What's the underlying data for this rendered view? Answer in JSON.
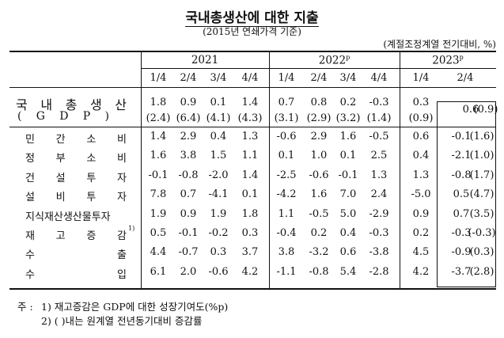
{
  "title": "국내총생산에 대한 지출",
  "subtitle": "(2015년 연쇄가격 기준)",
  "unit": "(계절조정계열 전기대비, %)",
  "years": [
    {
      "label": "2021",
      "sup": ""
    },
    {
      "label": "2022",
      "sup": "p"
    },
    {
      "label": "2023",
      "sup": "p"
    }
  ],
  "quarters": [
    "1/4",
    "2/4",
    "3/4",
    "4/4",
    "1/4",
    "2/4",
    "3/4",
    "4/4",
    "1/4",
    "2/4"
  ],
  "gdp": {
    "label_chars": [
      "국",
      "내",
      "총",
      "생",
      "산"
    ],
    "sub_chars": [
      "(",
      "G",
      "D",
      "P",
      ")"
    ],
    "values": [
      "1.8",
      "0.9",
      "0.1",
      "1.4",
      "0.7",
      "0.8",
      "0.2",
      "-0.3",
      "0.3",
      "0.6"
    ],
    "yoy": [
      "(2.4)",
      "(6.4)",
      "(4.1)",
      "(4.3)",
      "(3.1)",
      "(2.9)",
      "(3.2)",
      "(1.4)",
      "(0.9)",
      "(0.9)"
    ]
  },
  "rows": [
    {
      "chars": [
        "민",
        "간",
        "소",
        "비"
      ],
      "sup": "",
      "values": [
        "1.4",
        "2.9",
        "0.4",
        "1.3",
        "-0.6",
        "2.9",
        "1.6",
        "-0.5",
        "0.6",
        "-0.1"
      ],
      "yoy": "(1.6)"
    },
    {
      "chars": [
        "정",
        "부",
        "소",
        "비"
      ],
      "sup": "",
      "values": [
        "1.6",
        "3.8",
        "1.5",
        "1.1",
        "0.1",
        "1.0",
        "0.1",
        "2.5",
        "0.4",
        "-2.1"
      ],
      "yoy": "(1.0)"
    },
    {
      "chars": [
        "건",
        "설",
        "투",
        "자"
      ],
      "sup": "",
      "values": [
        "-0.1",
        "-0.8",
        "-2.0",
        "1.4",
        "-2.5",
        "-0.6",
        "-0.1",
        "1.3",
        "1.3",
        "-0.8"
      ],
      "yoy": "(1.7)"
    },
    {
      "chars": [
        "설",
        "비",
        "투",
        "자"
      ],
      "sup": "",
      "values": [
        "7.8",
        "0.7",
        "-4.1",
        "0.1",
        "-4.2",
        "1.6",
        "7.0",
        "2.4",
        "-5.0",
        "0.5"
      ],
      "yoy": "(4.7)"
    },
    {
      "chars": [
        "지식재산생산물투자"
      ],
      "sup": "",
      "values": [
        "1.9",
        "0.9",
        "1.9",
        "1.8",
        "1.1",
        "-0.5",
        "5.0",
        "-2.9",
        "0.9",
        "0.7"
      ],
      "yoy": "(3.5)"
    },
    {
      "chars": [
        "재",
        "고",
        "증",
        "감"
      ],
      "sup": "1)",
      "values": [
        "0.5",
        "-0.1",
        "-0.2",
        "0.3",
        "-0.4",
        "0.2",
        "0.4",
        "-0.3",
        "0.2",
        "-0.3"
      ],
      "yoy": "(-0.3)"
    },
    {
      "chars": [
        "수",
        "출"
      ],
      "sup": "",
      "values": [
        "4.4",
        "-0.7",
        "0.3",
        "3.7",
        "3.8",
        "-3.2",
        "0.6",
        "-3.8",
        "4.5",
        "-0.9"
      ],
      "yoy": "(0.3)"
    },
    {
      "chars": [
        "수",
        "입"
      ],
      "sup": "",
      "values": [
        "6.1",
        "2.0",
        "-0.6",
        "4.2",
        "-1.1",
        "-0.8",
        "5.4",
        "-2.8",
        "4.2",
        "-3.7"
      ],
      "yoy": "(2.8)"
    }
  ],
  "notes": {
    "prefix": "주 :",
    "items": [
      "1) 재고증감은 GDP에 대한 성장기여도(%p)",
      "2) (  )내는 원계열 전년동기대비 증감률"
    ]
  }
}
